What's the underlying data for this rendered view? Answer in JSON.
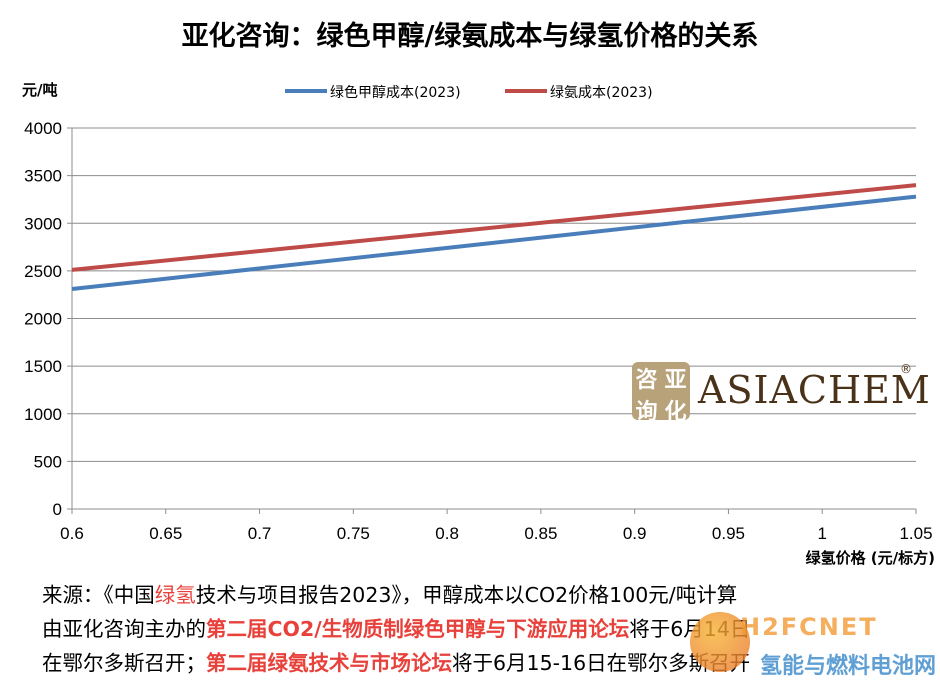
{
  "title": "亚化咨询：绿色甲醇/绿氨成本与绿氢价格的关系",
  "chart_data": {
    "type": "line",
    "ylabel": "元/吨",
    "xlabel": "绿氢价格 (元/标方)",
    "xlim": [
      0.6,
      1.05
    ],
    "ylim": [
      0,
      4000
    ],
    "x_ticks": [
      "0.6",
      "0.65",
      "0.7",
      "0.75",
      "0.8",
      "0.85",
      "0.9",
      "0.95",
      "1",
      "1.05"
    ],
    "y_ticks": [
      "0",
      "500",
      "1000",
      "1500",
      "2000",
      "2500",
      "3000",
      "3500",
      "4000"
    ],
    "grid": "horizontal",
    "legend_position": "top",
    "series": [
      {
        "name": "绿色甲醇成本(2023)",
        "color": "#4a7ebb",
        "x": [
          0.6,
          1.05
        ],
        "y": [
          2310,
          3280
        ]
      },
      {
        "name": "绿氨成本(2023)",
        "color": "#be4b48",
        "x": [
          0.6,
          1.05
        ],
        "y": [
          2510,
          3400
        ]
      }
    ]
  },
  "logo": {
    "seal_chars": [
      "咨",
      "亚",
      "询",
      "化"
    ],
    "text": "ASIACHEM",
    "registered": "®"
  },
  "source": {
    "line1_a": "来源：《中国",
    "line1_red": "绿氢",
    "line1_b": "技术与项目报告2023》，甲醇成本以CO2价格100元/吨计算",
    "line2_a": "由亚化咨询主办的",
    "line2_bold": "第二届CO2/生物质制绿色甲醇与下游应用论坛",
    "line2_b": "将于6月14日",
    "line3_a": "在鄂尔多斯召开；",
    "line3_bold": "第二届绿氨技术与市场论坛",
    "line3_b": "将于6月15-16日在鄂尔多斯召开"
  },
  "watermark": {
    "letters": "H2FCNET",
    "text": "氢能与燃料电池网"
  }
}
